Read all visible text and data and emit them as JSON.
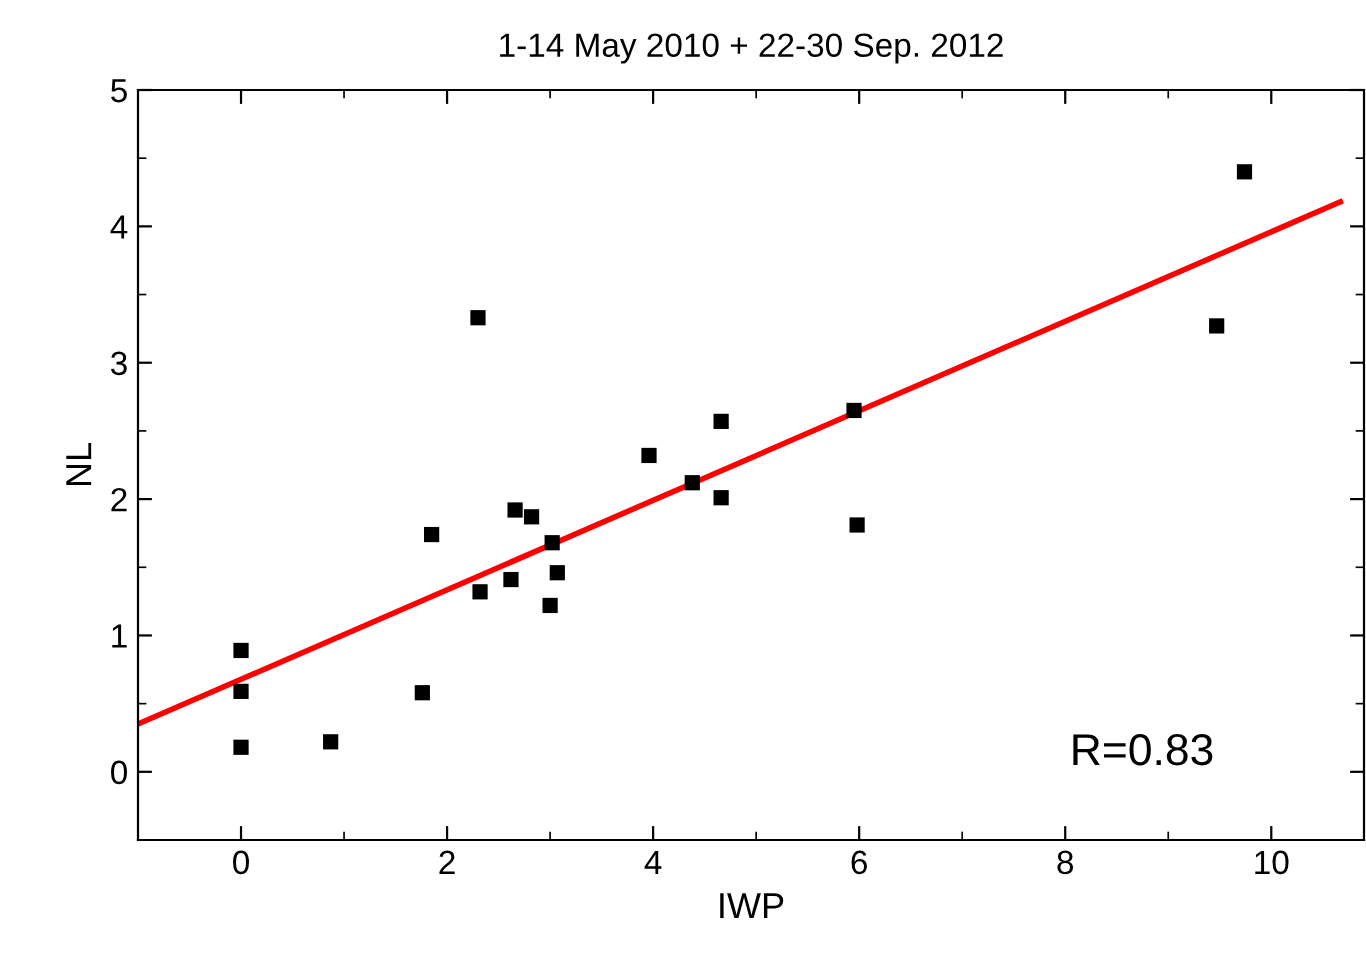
{
  "chart_data": {
    "type": "scatter",
    "title": "1-14 May 2010 + 22-30 Sep. 2012",
    "xlabel": "IWP",
    "ylabel": "NL",
    "x": [
      0,
      0,
      0,
      0.87,
      1.76,
      1.85,
      2.3,
      2.32,
      2.62,
      2.66,
      2.82,
      3.0,
      3.02,
      3.07,
      3.96,
      4.38,
      4.66,
      4.66,
      5.95,
      5.98,
      9.47,
      9.74
    ],
    "series": [
      {
        "color": "#000000",
        "marker": "square",
        "values": [
          0.89,
          0.59,
          0.18,
          0.22,
          0.58,
          1.74,
          3.33,
          1.32,
          1.41,
          1.92,
          1.87,
          1.22,
          1.68,
          1.46,
          2.32,
          2.12,
          2.57,
          2.01,
          2.65,
          1.81,
          3.27,
          4.4
        ]
      },
      {
        "type": "line",
        "color": "#ff0000",
        "x": [
          -1,
          10.67
        ],
        "values": [
          0.35,
          4.18
        ]
      }
    ],
    "xlim": [
      -1,
      10.9
    ],
    "ylim": [
      -0.5,
      5
    ],
    "xticks": [
      0,
      2,
      4,
      6,
      8,
      10
    ],
    "yticks": [
      0,
      1,
      2,
      3,
      4,
      5
    ],
    "grid": false,
    "legend": false,
    "annotations": [
      "R=0.83"
    ]
  }
}
